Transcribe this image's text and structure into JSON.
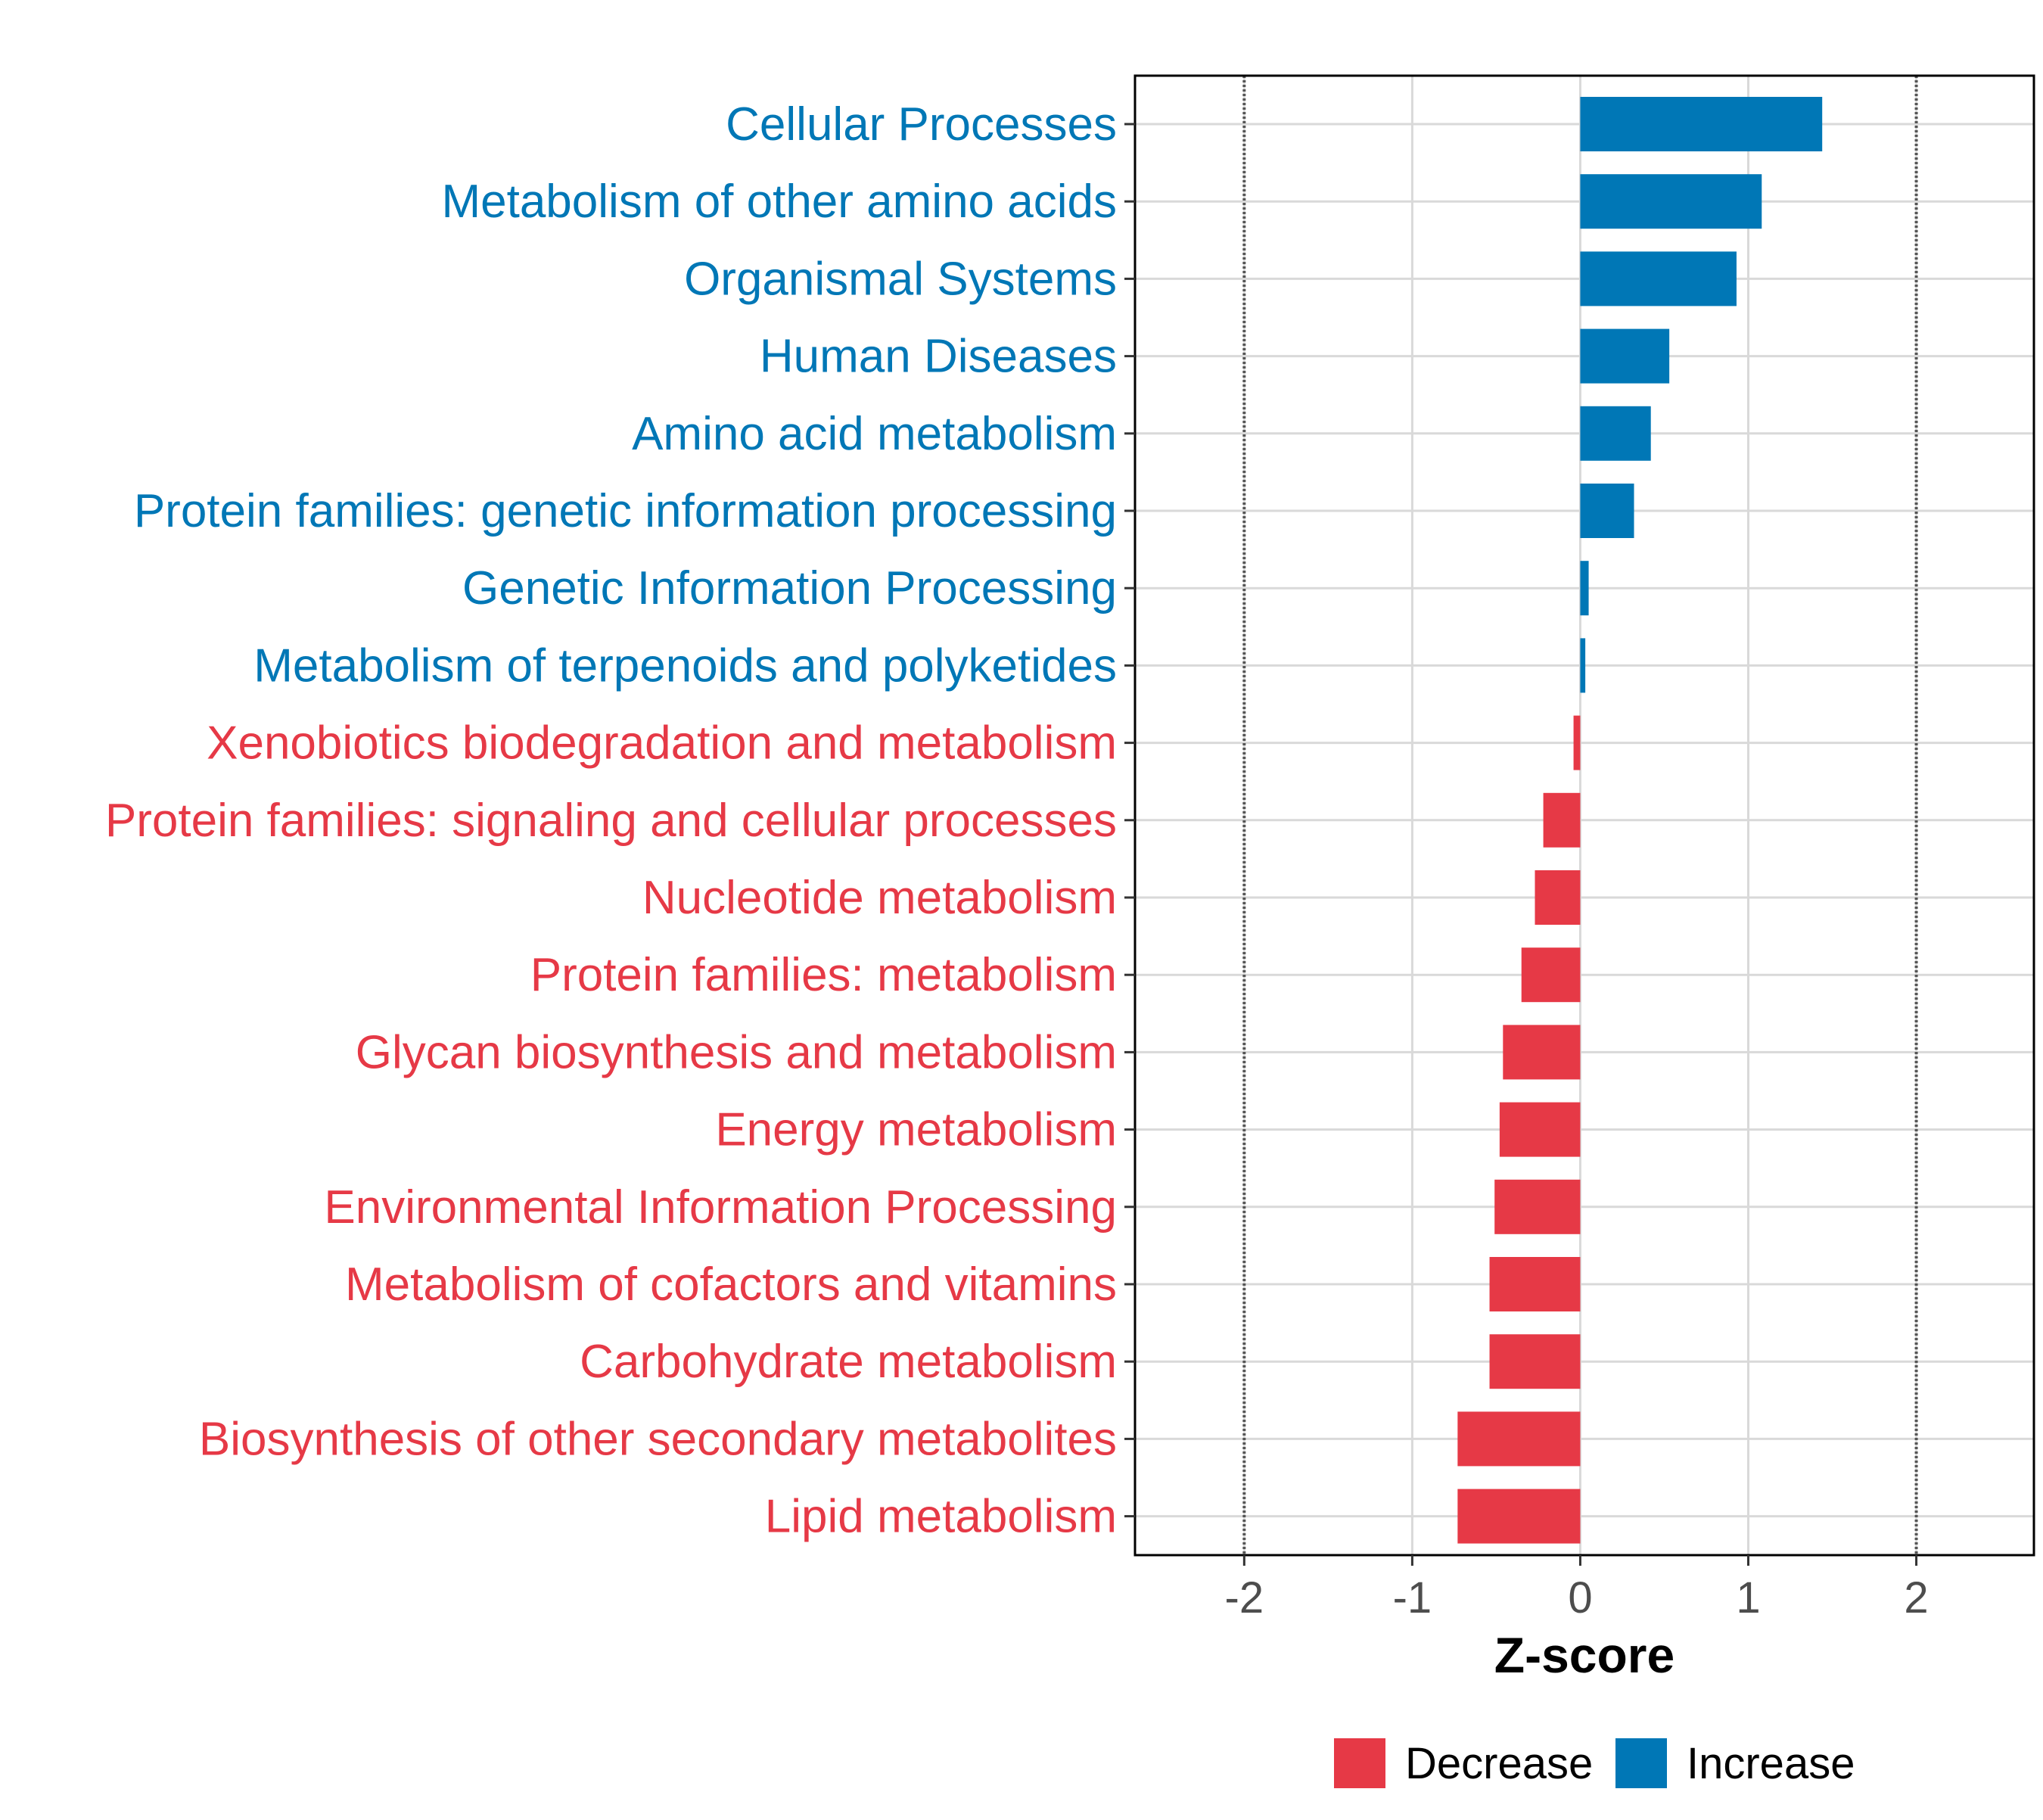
{
  "chart_data": {
    "type": "bar",
    "orientation": "horizontal",
    "xlabel": "Z-score",
    "xlim": [
      -2.65,
      2.7
    ],
    "x_ticks": [
      -2,
      -1,
      0,
      1,
      2
    ],
    "x_tick_labels": [
      "-2",
      "-1",
      "0",
      "1",
      "2"
    ],
    "reference_lines": [
      -2,
      2
    ],
    "grid": true,
    "categories": [
      "Cellular Processes",
      "Metabolism of other amino acids",
      "Organismal Systems",
      "Human Diseases",
      "Amino acid metabolism",
      "Protein families: genetic information processing",
      "Genetic Information Processing",
      "Metabolism of terpenoids and polyketides",
      "Xenobiotics biodegradation and metabolism",
      "Protein families: signaling and cellular processes",
      "Nucleotide metabolism",
      "Protein families: metabolism",
      "Glycan biosynthesis and metabolism",
      "Energy metabolism",
      "Environmental Information Processing",
      "Metabolism of cofactors and vitamins",
      "Carbohydrate metabolism",
      "Biosynthesis of other secondary metabolites",
      "Lipid metabolism"
    ],
    "values": [
      1.44,
      1.08,
      0.93,
      0.53,
      0.42,
      0.32,
      0.05,
      0.03,
      -0.04,
      -0.22,
      -0.27,
      -0.35,
      -0.46,
      -0.48,
      -0.51,
      -0.54,
      -0.54,
      -0.73,
      -0.73
    ],
    "groups": [
      "Increase",
      "Increase",
      "Increase",
      "Increase",
      "Increase",
      "Increase",
      "Increase",
      "Increase",
      "Decrease",
      "Decrease",
      "Decrease",
      "Decrease",
      "Decrease",
      "Decrease",
      "Decrease",
      "Decrease",
      "Decrease",
      "Decrease",
      "Decrease"
    ],
    "legend": {
      "placement": "bottom",
      "entries": [
        {
          "name": "Decrease",
          "color": "#e63946"
        },
        {
          "name": "Increase",
          "color": "#0077b6"
        }
      ]
    },
    "colors": {
      "Decrease": "#e63946",
      "Increase": "#0077b6",
      "grid": "#d9d9d9",
      "reference_line": "#555555",
      "panel_border": "#000000"
    }
  }
}
